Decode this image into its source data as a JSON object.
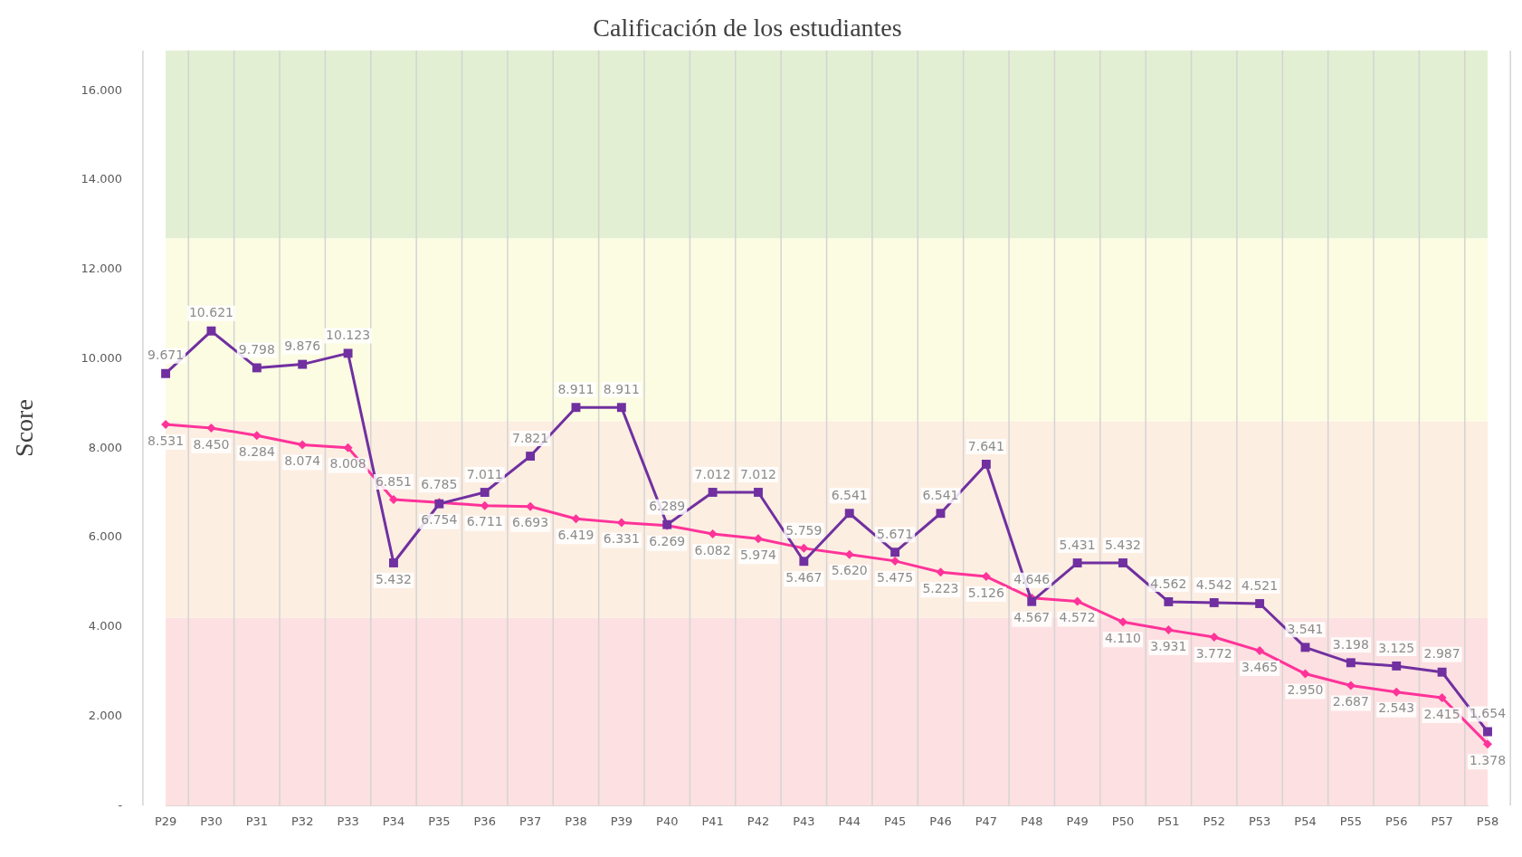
{
  "chart_data": {
    "type": "line",
    "title": "Calificación de los estudiantes",
    "ylabel": "Score",
    "categories": [
      "P29",
      "P30",
      "P31",
      "P32",
      "P33",
      "P34",
      "P35",
      "P36",
      "P37",
      "P38",
      "P39",
      "P40",
      "P41",
      "P42",
      "P43",
      "P44",
      "P45",
      "P46",
      "P47",
      "P48",
      "P49",
      "P50",
      "P51",
      "P52",
      "P53",
      "P54",
      "P55",
      "P56",
      "P57",
      "P58"
    ],
    "series": [
      {
        "color": "#7030a0",
        "marker": "square",
        "values": [
          9.671,
          10.621,
          9.798,
          9.876,
          10.123,
          5.432,
          6.754,
          7.011,
          7.821,
          8.911,
          8.911,
          6.289,
          7.012,
          7.012,
          5.467,
          6.541,
          5.671,
          6.541,
          7.641,
          4.567,
          5.431,
          5.432,
          4.562,
          4.542,
          4.521,
          3.541,
          3.198,
          3.125,
          2.987,
          1.654
        ],
        "value_labels": [
          "9.671",
          "10.621",
          "9.798",
          "9.876",
          "10.123",
          "5.432",
          "6.754",
          "7.011",
          "7.821",
          "8.911",
          "8.911",
          "6.289",
          "7.012",
          "7.012",
          "5.467",
          "6.541",
          "5.671",
          "6.541",
          "7.641",
          "4.567",
          "5.431",
          "5.432",
          "4.562",
          "4.542",
          "4.521",
          "3.541",
          "3.198",
          "3.125",
          "2.987",
          "1.654"
        ]
      },
      {
        "color": "#ff3399",
        "marker": "diamond",
        "values": [
          8.531,
          8.45,
          8.284,
          8.074,
          8.008,
          6.851,
          6.785,
          6.711,
          6.693,
          6.419,
          6.331,
          6.269,
          6.082,
          5.974,
          5.759,
          5.62,
          5.475,
          5.223,
          5.126,
          4.646,
          4.572,
          4.11,
          3.931,
          3.772,
          3.465,
          2.95,
          2.687,
          2.543,
          2.415,
          1.378
        ],
        "value_labels": [
          "8.531",
          "8.450",
          "8.284",
          "8.074",
          "8.008",
          "6.851",
          "6.785",
          "6.711",
          "6.693",
          "6.419",
          "6.331",
          "6.269",
          "6.082",
          "5.974",
          "5.759",
          "5.620",
          "5.475",
          "5.223",
          "5.126",
          "4.646",
          "4.572",
          "4.110",
          "3.931",
          "3.772",
          "3.465",
          "2.950",
          "2.687",
          "2.543",
          "2.415",
          "1.378"
        ]
      }
    ],
    "ylim": [
      0,
      16.9
    ],
    "yticks": [
      {
        "value": 0,
        "label": "-"
      },
      {
        "value": 2,
        "label": "2.000"
      },
      {
        "value": 4,
        "label": "4.000"
      },
      {
        "value": 6,
        "label": "6.000"
      },
      {
        "value": 8,
        "label": "8.000"
      },
      {
        "value": 10,
        "label": "10.000"
      },
      {
        "value": 12,
        "label": "12.000"
      },
      {
        "value": 14,
        "label": "14.000"
      },
      {
        "value": 16,
        "label": "16.000"
      }
    ],
    "bands": [
      {
        "axis": "y",
        "from": 0,
        "to": 4.2,
        "color": "#fde0e1"
      },
      {
        "axis": "y",
        "from": 4.2,
        "to": 8.6,
        "color": "#fdeee2"
      },
      {
        "axis": "y",
        "from": 8.6,
        "to": 12.7,
        "color": "#fcfce3"
      },
      {
        "axis": "y",
        "from": 12.7,
        "to": 16.9,
        "color": "#e2efd3"
      }
    ],
    "grid": "x",
    "legend": false,
    "line_style": "solid"
  }
}
